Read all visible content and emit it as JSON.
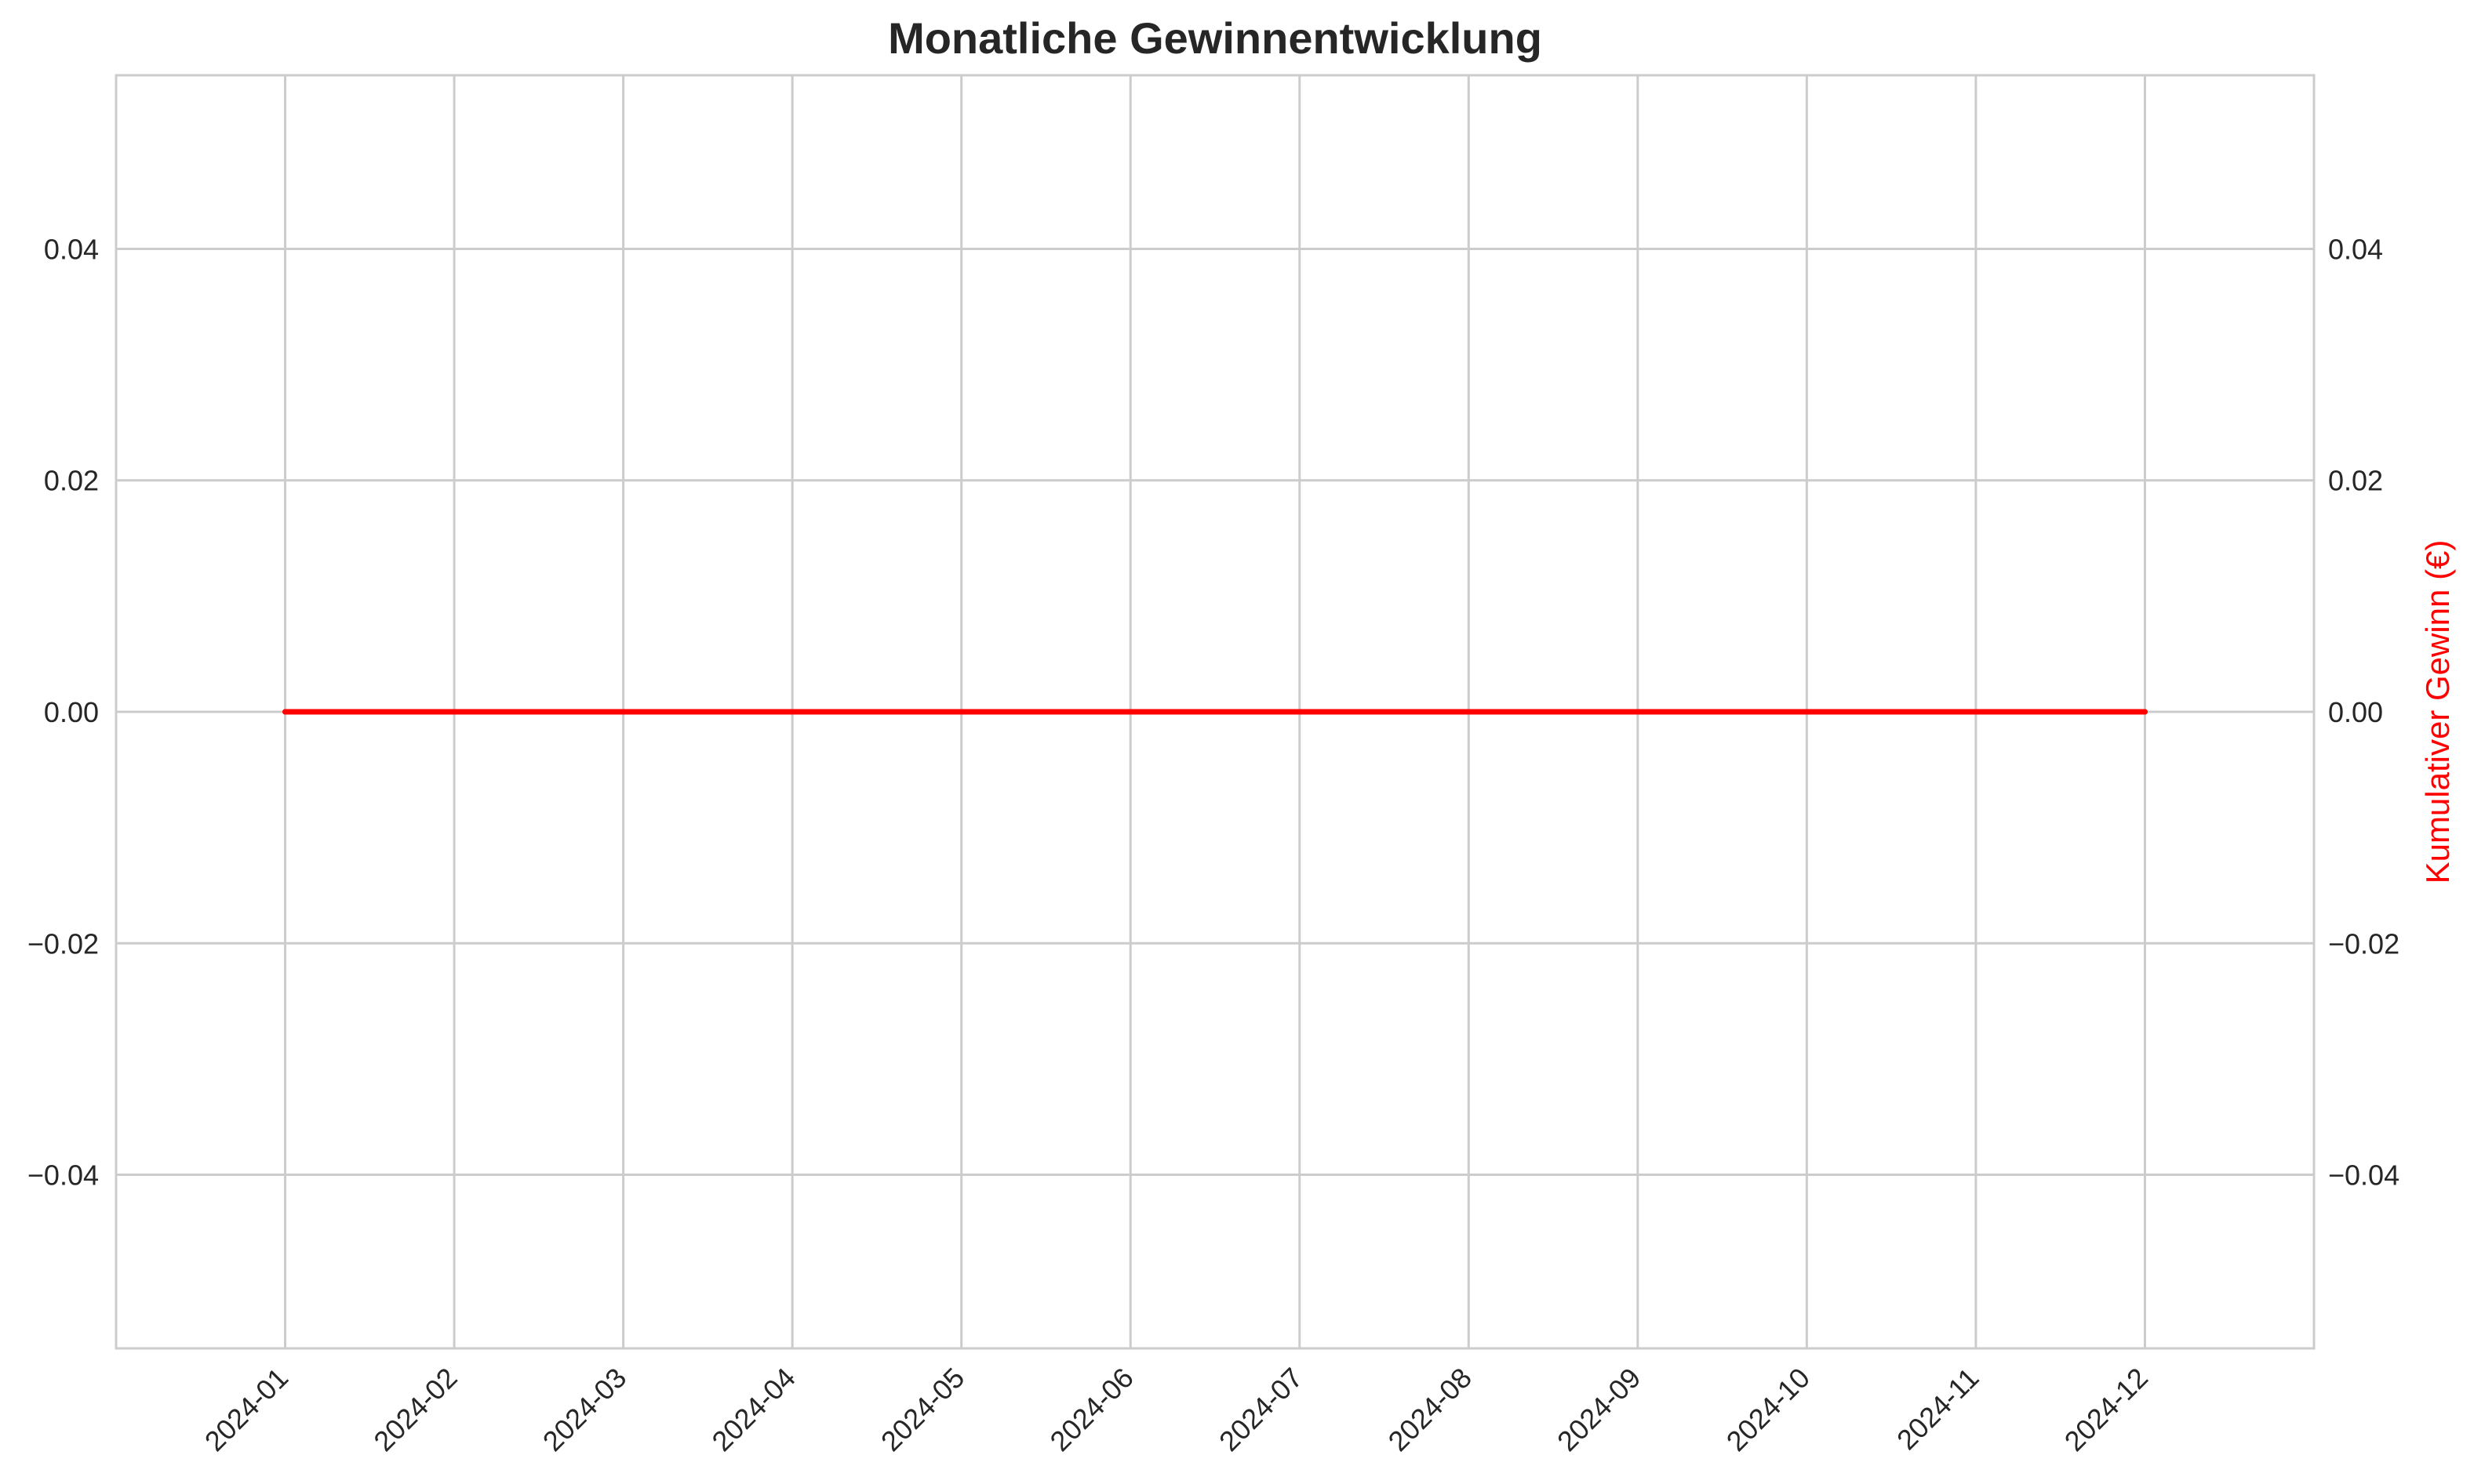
{
  "colors": {
    "line": "#ff0000",
    "ylabel_right": "#ff0000",
    "grid": "#cccccc",
    "text": "#262626"
  },
  "chart_data": {
    "type": "line",
    "title": "Monatliche Gewinnentwicklung",
    "xlabel": "",
    "ylabel": "",
    "ylabel_right": "Kumulativer Gewinn (€)",
    "grid": true,
    "x": [
      "2024-01",
      "2024-02",
      "2024-03",
      "2024-04",
      "2024-05",
      "2024-06",
      "2024-07",
      "2024-08",
      "2024-09",
      "2024-10",
      "2024-11",
      "2024-12"
    ],
    "xlim": [
      "2023-12",
      "2025-01"
    ],
    "ylim": [
      -0.055,
      0.055
    ],
    "yticks": [
      -0.04,
      -0.02,
      0.0,
      0.02,
      0.04
    ],
    "ytick_labels": [
      "−0.04",
      "−0.02",
      "0.00",
      "0.02",
      "0.04"
    ],
    "series": [
      {
        "axis": "right",
        "color": "#ff0000",
        "values": [
          0,
          0,
          0,
          0,
          0,
          0,
          0,
          0,
          0,
          0,
          0,
          0
        ]
      }
    ]
  }
}
